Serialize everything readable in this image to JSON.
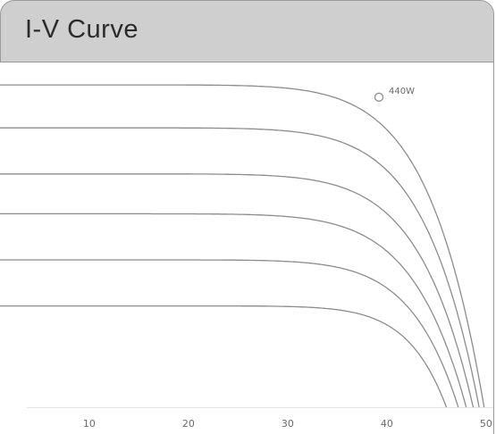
{
  "panel": {
    "title": "I-V Curve"
  },
  "chart_data": {
    "type": "line",
    "title": "I-V Curve",
    "xlabel": "",
    "ylabel": "",
    "xlim": [
      1,
      51
    ],
    "ylim": [
      0,
      11.2
    ],
    "x_ticks": [
      10,
      20,
      30,
      40,
      50
    ],
    "grid": false,
    "series": [
      {
        "isc": 10.5,
        "voc": 49.8,
        "p_param": 9
      },
      {
        "isc": 9.1,
        "voc": 49.3,
        "p_param": 9
      },
      {
        "isc": 7.6,
        "voc": 48.7,
        "p_param": 9
      },
      {
        "isc": 6.3,
        "voc": 48.0,
        "p_param": 9
      },
      {
        "isc": 4.8,
        "voc": 47.2,
        "p_param": 10
      },
      {
        "isc": 3.3,
        "voc": 46.0,
        "p_param": 12
      }
    ],
    "annotations": [
      {
        "label": "440W",
        "x": 39.2,
        "y": 10.1
      }
    ]
  }
}
